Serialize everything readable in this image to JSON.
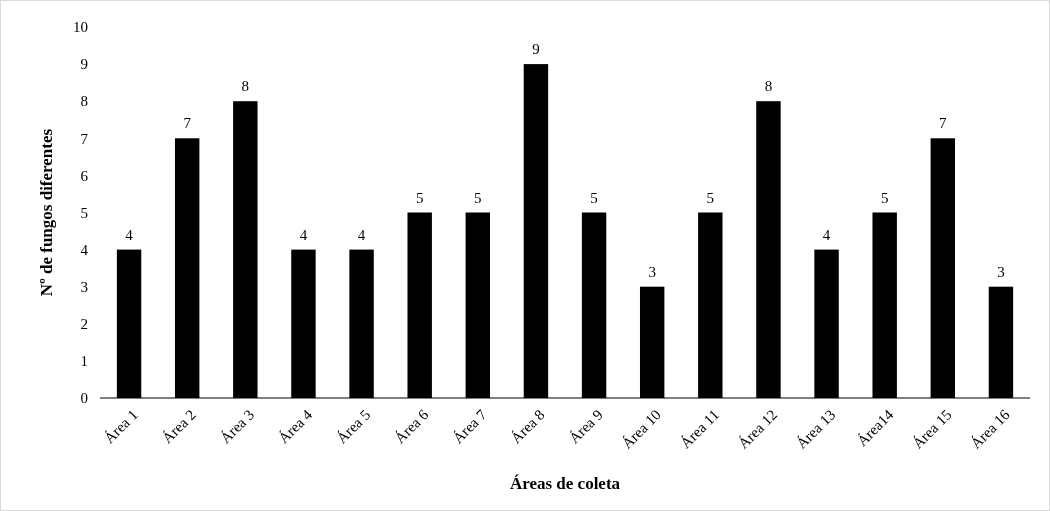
{
  "chart_data": {
    "type": "bar",
    "xlabel": "Áreas de coleta",
    "ylabel": "Nº de fungos diferentes",
    "categories": [
      "Área 1",
      "Área 2",
      "Área 3",
      "Área 4",
      "Área 5",
      "Área 6",
      "Área 7",
      "Área 8",
      "Área 9",
      "Área 10",
      "Área 11",
      "Área 12",
      "Área 13",
      "Área14",
      "Área 15",
      "Área 16"
    ],
    "values": [
      4,
      7,
      8,
      4,
      4,
      5,
      5,
      9,
      5,
      3,
      5,
      8,
      4,
      5,
      7,
      3
    ],
    "color": "#000000",
    "ylim": [
      0,
      10
    ],
    "yticks": [
      0,
      1,
      2,
      3,
      4,
      5,
      6,
      7,
      8,
      9,
      10
    ],
    "grid": false,
    "data_labels": true
  }
}
